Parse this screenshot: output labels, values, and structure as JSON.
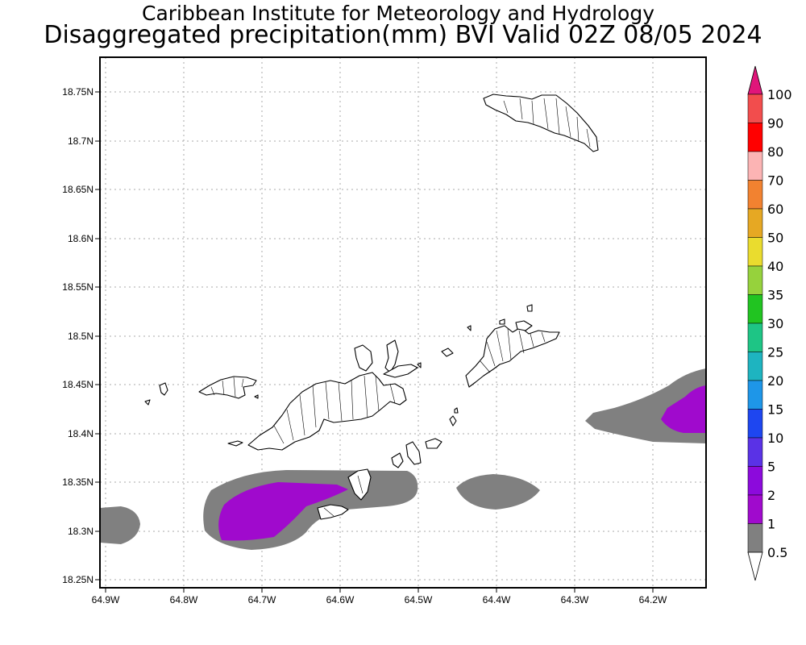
{
  "header": {
    "line1": "Caribbean Institute for Meteorology and Hydrology",
    "line2": "Disaggregated precipitation(mm) BVI Valid 02Z 08/05 2024"
  },
  "map": {
    "region": "British Virgin Islands",
    "lat_labels": [
      "18.75N",
      "18.7N",
      "18.65N",
      "18.6N",
      "18.55N",
      "18.5N",
      "18.45N",
      "18.4N",
      "18.35N",
      "18.3N",
      "18.25N"
    ],
    "lon_labels": [
      "64.9W",
      "64.8W",
      "64.7W",
      "64.6W",
      "64.5W",
      "64.4W",
      "64.3W",
      "64.2W"
    ],
    "lat_range": [
      18.24,
      18.77
    ],
    "lon_range": [
      -64.905,
      -64.13
    ],
    "gridlines": "dotted"
  },
  "colorbar": {
    "labels": [
      "100",
      "90",
      "80",
      "70",
      "60",
      "50",
      "40",
      "35",
      "30",
      "25",
      "20",
      "15",
      "10",
      "5",
      "2",
      "1",
      "0.5"
    ],
    "colors": [
      "#e0157a",
      "#f24d4d",
      "#ff0000",
      "#fcb4b4",
      "#f28230",
      "#e6a823",
      "#eadc2e",
      "#96d23c",
      "#21c421",
      "#1ec585",
      "#1eb4c0",
      "#1e96e8",
      "#1e46f0",
      "#5a32e6",
      "#8c0adc",
      "#a00acd",
      "#808080"
    ]
  },
  "precip_levels": {
    "outer": {
      "label": "1",
      "color": "#808080"
    },
    "inner": {
      "label": "2",
      "color": "#a00acd"
    }
  }
}
